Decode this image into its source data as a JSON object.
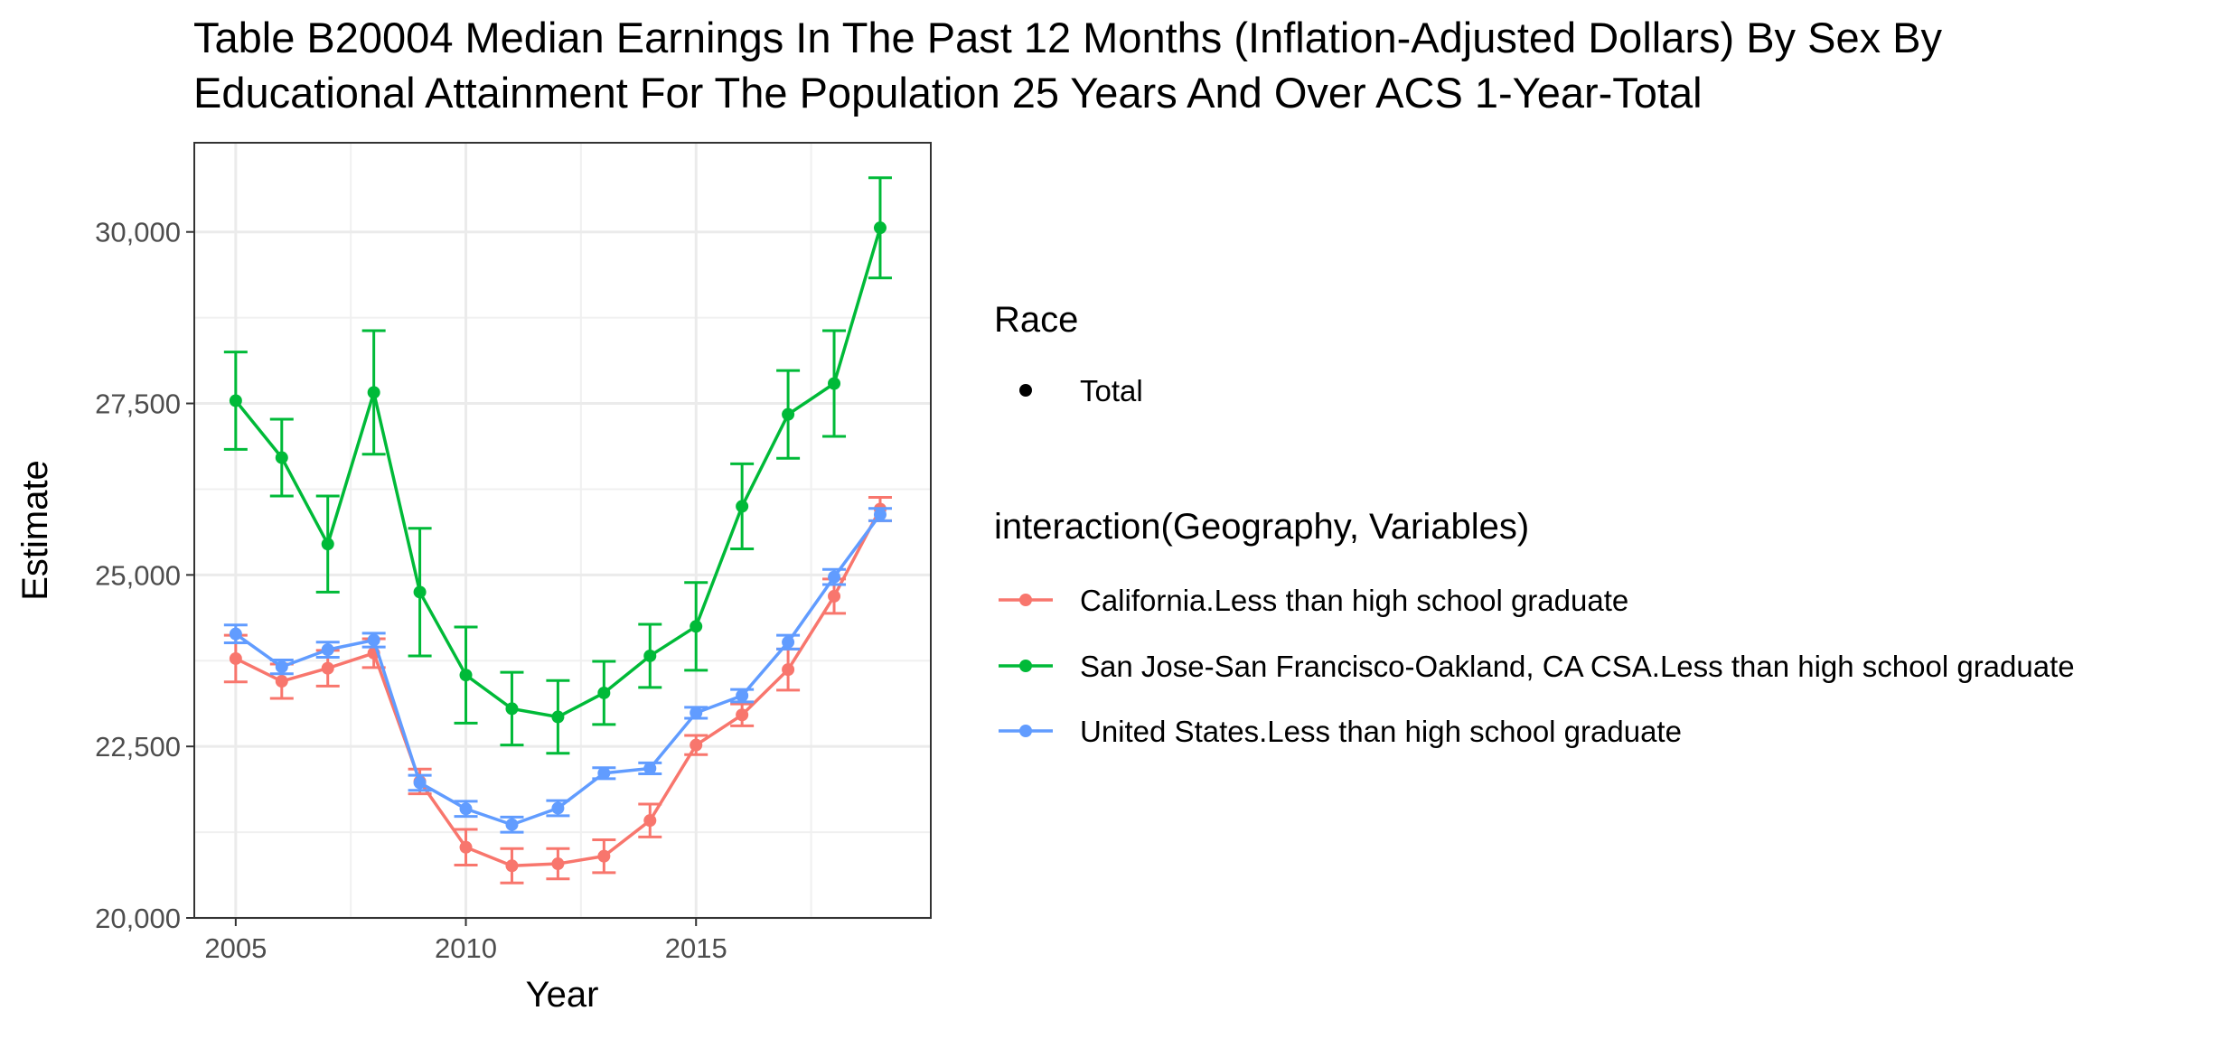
{
  "chart_data": {
    "type": "line",
    "title": "Table B20004 Median Earnings In The Past 12 Months (Inflation-Adjusted Dollars) By Sex By",
    "subtitle": "Educational Attainment For The Population 25 Years And Over ACS 1-Year-Total",
    "xlabel": "Year",
    "ylabel": "Estimate",
    "xlim": [
      2004.1,
      2020.1
    ],
    "ylim": [
      20000,
      31300
    ],
    "x_ticks": [
      2005,
      2010,
      2015
    ],
    "x_tick_labels": [
      "2005",
      "2010",
      "2015"
    ],
    "y_ticks": [
      20000,
      22500,
      25000,
      27500,
      30000
    ],
    "y_tick_labels": [
      "20,000",
      "22,500",
      "25,000",
      "27,500",
      "30,000"
    ],
    "grid": true,
    "legend_position": "right",
    "legend": {
      "shape_title": "Race",
      "shape_entries": [
        "Total"
      ],
      "color_title": "interaction(Geography, Variables)"
    },
    "x": [
      2005,
      2006,
      2007,
      2008,
      2009,
      2010,
      2011,
      2012,
      2013,
      2014,
      2015,
      2016,
      2017,
      2018,
      2019
    ],
    "series": [
      {
        "name": "California.Less than high school graduate",
        "color": "#F8766D",
        "values": [
          23780,
          23450,
          23640,
          23860,
          21990,
          21030,
          20760,
          20790,
          20900,
          21420,
          22520,
          22960,
          23620,
          24690,
          25960
        ],
        "error_low": [
          23440,
          23200,
          23380,
          23650,
          21810,
          20770,
          20510,
          20570,
          20660,
          21180,
          22380,
          22800,
          23320,
          24440,
          25790
        ],
        "error_high": [
          24120,
          23700,
          23900,
          24070,
          22170,
          21290,
          21010,
          21010,
          21140,
          21660,
          22660,
          23120,
          23920,
          24940,
          26130
        ]
      },
      {
        "name": "San Jose-San Francisco-Oakland, CA CSA.Less than high school graduate",
        "color": "#00BA38",
        "values": [
          27540,
          26710,
          25450,
          27660,
          24750,
          23540,
          23050,
          22930,
          23280,
          23820,
          24250,
          26000,
          27340,
          27790,
          30060
        ],
        "error_low": [
          26830,
          26150,
          24750,
          26760,
          23820,
          22840,
          22520,
          22400,
          22820,
          23360,
          23610,
          25380,
          26700,
          27020,
          29330
        ],
        "error_high": [
          28250,
          27270,
          26150,
          28560,
          25680,
          24240,
          23580,
          23460,
          23740,
          24280,
          24890,
          26620,
          27980,
          28560,
          30790
        ]
      },
      {
        "name": "United States.Less than high school graduate",
        "color": "#619CFF",
        "values": [
          24140,
          23660,
          23910,
          24050,
          21970,
          21590,
          21360,
          21600,
          22110,
          22180,
          22990,
          23240,
          24020,
          24970,
          25880
        ],
        "error_low": [
          24010,
          23560,
          23800,
          23950,
          21860,
          21480,
          21250,
          21490,
          22030,
          22100,
          22910,
          23150,
          23920,
          24860,
          25790
        ],
        "error_high": [
          24270,
          23760,
          24020,
          24150,
          22080,
          21700,
          21470,
          21710,
          22190,
          22260,
          23070,
          23330,
          24120,
          25080,
          25970
        ]
      }
    ]
  }
}
